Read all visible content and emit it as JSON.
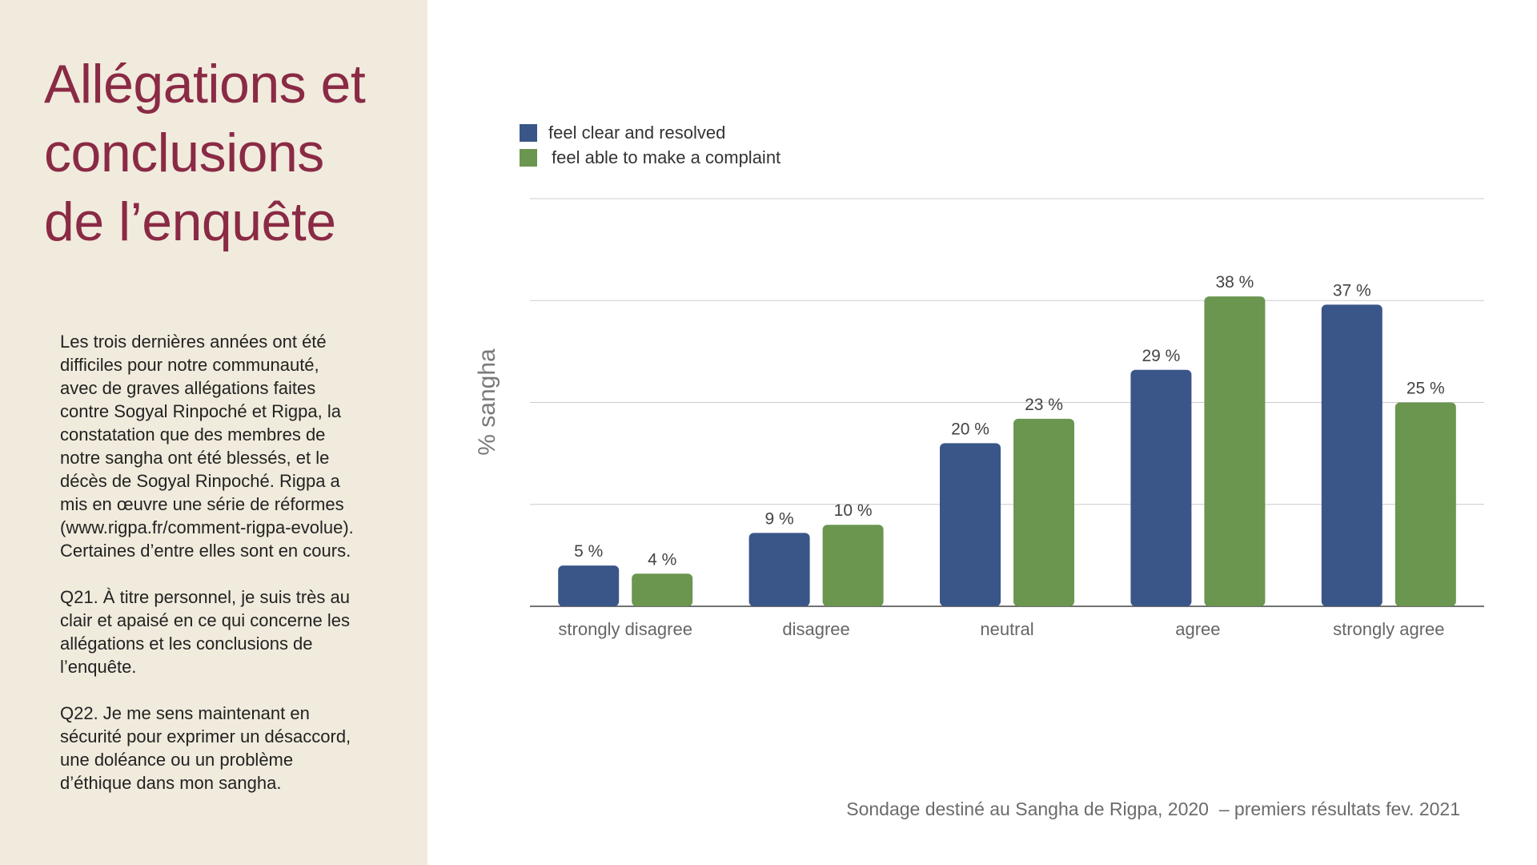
{
  "title_lines": [
    "Allégations et",
    "conclusions",
    "de l’enquête"
  ],
  "paragraphs": [
    "Les trois dernières années ont été\ndifficiles pour notre communauté,\navec de graves allégations faites\ncontre Sogyal Rinpoché et Rigpa, la\nconstatation que des membres de\nnotre sangha ont été blessés, et le\ndécès de Sogyal Rinpoché. Rigpa a\nmis en œuvre une série de réformes\n(www.rigpa.fr/comment-rigpa-evolue).\nCertaines d’entre elles sont en cours.",
    "Q21. À titre personnel, je suis très au\nclair et apaisé en ce qui concerne les\nallégations et les conclusions de\nl’enquête.",
    "Q22. Je me sens maintenant en\nsécurité pour exprimer un désaccord,\nune doléance ou un problème\nd’éthique dans mon sangha."
  ],
  "footer": "Sondage destiné au Sangha de Rigpa, 2020  – premiers résultats fev. 2021",
  "colors": {
    "title": "#8a2a45",
    "panel_bg": "#f1ebdd",
    "series_blue": "#3a5688",
    "series_green": "#6a9650",
    "grid": "#cccccc",
    "axis_text": "#666666"
  },
  "chart_data": {
    "type": "bar",
    "ylabel": "% sangha",
    "xlabel": "",
    "ylim": [
      0,
      50
    ],
    "grid": true,
    "legend_position": "top-left",
    "categories": [
      "strongly disagree",
      "disagree",
      "neutral",
      "agree",
      "strongly agree"
    ],
    "series": [
      {
        "name": "feel clear and resolved",
        "values": [
          5,
          9,
          20,
          29,
          37
        ],
        "labels": [
          "5 %",
          "9 %",
          "20 %",
          "29 %",
          "37 %"
        ]
      },
      {
        "name": "feel able to make a complaint",
        "values": [
          4,
          10,
          23,
          38,
          25
        ],
        "labels": [
          "4 %",
          "10 %",
          "23 %",
          "38 %",
          "25 %"
        ]
      }
    ]
  }
}
